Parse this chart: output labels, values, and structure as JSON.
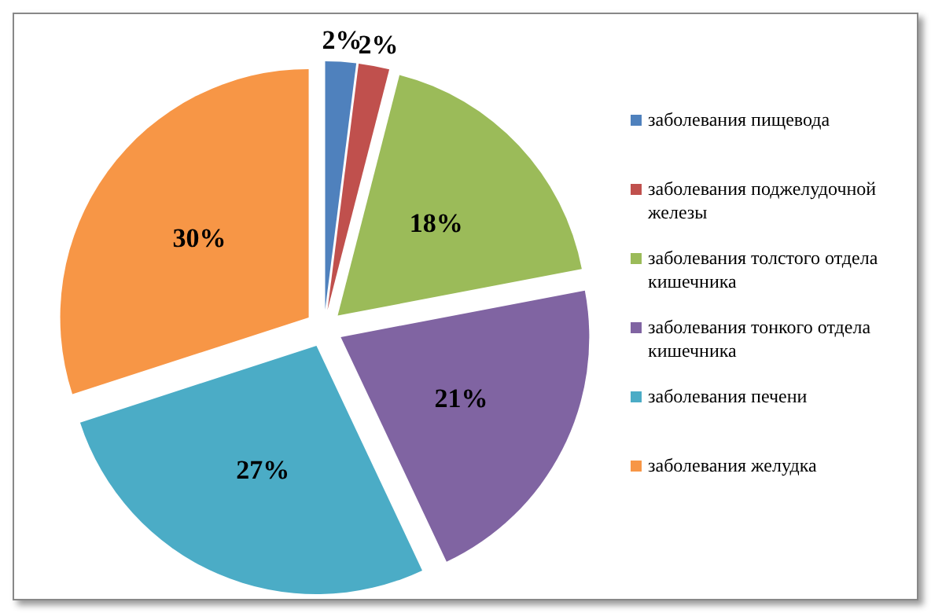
{
  "chart_data": {
    "type": "pie",
    "categories": [
      "заболевания пищевода",
      "заболевания поджелудочной железы",
      "заболевания толстого отдела кишечника",
      "заболевания тонкого отдела кишечника",
      "заболевания печени",
      "заболевания желудка"
    ],
    "values": [
      2,
      2,
      18,
      21,
      27,
      30
    ],
    "colors": [
      "#4f81bd",
      "#c0504d",
      "#9bbb59",
      "#8064a2",
      "#4bacc6",
      "#f79646"
    ],
    "value_labels": [
      "2%",
      "2%",
      "18%",
      "21%",
      "27%",
      "30%"
    ],
    "legend": "right"
  }
}
